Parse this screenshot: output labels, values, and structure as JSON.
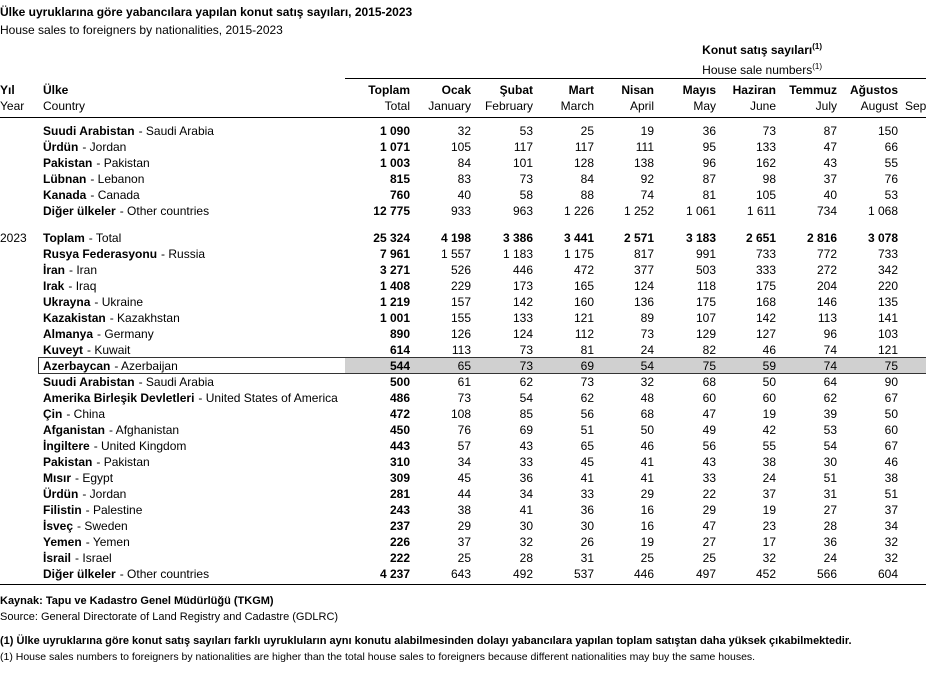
{
  "header": {
    "title": "Ülke uyruklarına göre yabancılara yapılan konut satış sayıları, 2015-2023",
    "subtitle": "House sales to foreigners by nationalities, 2015-2023",
    "group_tr": "Konut satış sayıları",
    "group_tr_sup": "(1)",
    "group_en": "House sale numbers",
    "group_en_sup": "(1)"
  },
  "table": {
    "year_head": {
      "tr": "Yıl",
      "en": "Year"
    },
    "country_head": {
      "tr": "Ülke",
      "en": "Country"
    },
    "columns": [
      {
        "tr": "Toplam",
        "en": "Total"
      },
      {
        "tr": "Ocak",
        "en": "January"
      },
      {
        "tr": "Şubat",
        "en": "February"
      },
      {
        "tr": "Mart",
        "en": "March"
      },
      {
        "tr": "Nisan",
        "en": "April"
      },
      {
        "tr": "Mayıs",
        "en": "May"
      },
      {
        "tr": "Haziran",
        "en": "June"
      },
      {
        "tr": "Temmuz",
        "en": "July"
      },
      {
        "tr": "Ağustos",
        "en": "August"
      },
      {
        "en": "Sep"
      }
    ],
    "sections": [
      {
        "rows": [
          {
            "tr": "Suudi Arabistan",
            "en": "- Saudi Arabia",
            "values": [
              "1 090",
              "32",
              "53",
              "25",
              "19",
              "36",
              "73",
              "87",
              "150"
            ]
          },
          {
            "tr": "Ürdün",
            "en": "- Jordan",
            "values": [
              "1 071",
              "105",
              "117",
              "117",
              "111",
              "95",
              "133",
              "47",
              "66"
            ]
          },
          {
            "tr": "Pakistan",
            "en": "- Pakistan",
            "values": [
              "1 003",
              "84",
              "101",
              "128",
              "138",
              "96",
              "162",
              "43",
              "55"
            ]
          },
          {
            "tr": "Lübnan",
            "en": "- Lebanon",
            "values": [
              "815",
              "83",
              "73",
              "84",
              "92",
              "87",
              "98",
              "37",
              "76"
            ]
          },
          {
            "tr": "Kanada",
            "en": "- Canada",
            "values": [
              "760",
              "40",
              "58",
              "88",
              "74",
              "81",
              "105",
              "40",
              "53"
            ]
          },
          {
            "tr": "Diğer ülkeler",
            "en": "- Other countries",
            "values": [
              "12 775",
              "933",
              "963",
              "1 226",
              "1 252",
              "1 061",
              "1 611",
              "734",
              "1 068"
            ]
          }
        ]
      },
      {
        "year": "2023",
        "rows": [
          {
            "tr": "Toplam",
            "en": "- Total",
            "total": true,
            "values": [
              "25 324",
              "4 198",
              "3 386",
              "3 441",
              "2 571",
              "3 183",
              "2 651",
              "2 816",
              "3 078"
            ]
          },
          {
            "tr": "Rusya Federasyonu",
            "en": "- Russia",
            "values": [
              "7 961",
              "1 557",
              "1 183",
              "1 175",
              "817",
              "991",
              "733",
              "772",
              "733"
            ]
          },
          {
            "tr": "İran",
            "en": "- Iran",
            "values": [
              "3 271",
              "526",
              "446",
              "472",
              "377",
              "503",
              "333",
              "272",
              "342"
            ]
          },
          {
            "tr": "Irak",
            "en": "- Iraq",
            "values": [
              "1 408",
              "229",
              "173",
              "165",
              "124",
              "118",
              "175",
              "204",
              "220"
            ]
          },
          {
            "tr": "Ukrayna",
            "en": "- Ukraine",
            "values": [
              "1 219",
              "157",
              "142",
              "160",
              "136",
              "175",
              "168",
              "146",
              "135"
            ]
          },
          {
            "tr": "Kazakistan",
            "en": "- Kazakhstan",
            "values": [
              "1 001",
              "155",
              "133",
              "121",
              "89",
              "107",
              "142",
              "113",
              "141"
            ]
          },
          {
            "tr": "Almanya",
            "en": "- Germany",
            "values": [
              "890",
              "126",
              "124",
              "112",
              "73",
              "129",
              "127",
              "96",
              "103"
            ]
          },
          {
            "tr": "Kuveyt",
            "en": "- Kuwait",
            "values": [
              "614",
              "113",
              "73",
              "81",
              "24",
              "82",
              "46",
              "74",
              "121"
            ]
          },
          {
            "tr": "Azerbaycan",
            "en": "- Azerbaijan",
            "highlight": true,
            "values": [
              "544",
              "65",
              "73",
              "69",
              "54",
              "75",
              "59",
              "74",
              "75"
            ]
          },
          {
            "tr": "Suudi Arabistan",
            "en": "- Saudi Arabia",
            "values": [
              "500",
              "61",
              "62",
              "73",
              "32",
              "68",
              "50",
              "64",
              "90"
            ]
          },
          {
            "tr": "Amerika Birleşik Devletleri",
            "en": "- United States of America",
            "values": [
              "486",
              "73",
              "54",
              "62",
              "48",
              "60",
              "60",
              "62",
              "67"
            ]
          },
          {
            "tr": "Çin",
            "en": "- China",
            "values": [
              "472",
              "108",
              "85",
              "56",
              "68",
              "47",
              "19",
              "39",
              "50"
            ]
          },
          {
            "tr": "Afganistan",
            "en": "- Afghanistan",
            "values": [
              "450",
              "76",
              "69",
              "51",
              "50",
              "49",
              "42",
              "53",
              "60"
            ]
          },
          {
            "tr": "İngiltere",
            "en": "- United Kingdom",
            "values": [
              "443",
              "57",
              "43",
              "65",
              "46",
              "56",
              "55",
              "54",
              "67"
            ]
          },
          {
            "tr": "Pakistan",
            "en": "- Pakistan",
            "values": [
              "310",
              "34",
              "33",
              "45",
              "41",
              "43",
              "38",
              "30",
              "46"
            ]
          },
          {
            "tr": "Mısır",
            "en": "- Egypt",
            "values": [
              "309",
              "45",
              "36",
              "41",
              "41",
              "33",
              "24",
              "51",
              "38"
            ]
          },
          {
            "tr": "Ürdün",
            "en": "- Jordan",
            "values": [
              "281",
              "44",
              "34",
              "33",
              "29",
              "22",
              "37",
              "31",
              "51"
            ]
          },
          {
            "tr": "Filistin",
            "en": "- Palestine",
            "values": [
              "243",
              "38",
              "41",
              "36",
              "16",
              "29",
              "19",
              "27",
              "37"
            ]
          },
          {
            "tr": "İsveç",
            "en": "- Sweden",
            "values": [
              "237",
              "29",
              "30",
              "30",
              "16",
              "47",
              "23",
              "28",
              "34"
            ]
          },
          {
            "tr": "Yemen",
            "en": "- Yemen",
            "values": [
              "226",
              "37",
              "32",
              "26",
              "19",
              "27",
              "17",
              "36",
              "32"
            ]
          },
          {
            "tr": "İsrail",
            "en": "- Israel",
            "values": [
              "222",
              "25",
              "28",
              "31",
              "25",
              "25",
              "32",
              "24",
              "32"
            ]
          },
          {
            "tr": "Diğer ülkeler",
            "en": "- Other countries",
            "values": [
              "4 237",
              "643",
              "492",
              "537",
              "446",
              "497",
              "452",
              "566",
              "604"
            ]
          }
        ]
      }
    ]
  },
  "footer": {
    "source_tr": "Kaynak: Tapu ve Kadastro Genel Müdürlüğü (TKGM)",
    "source_en": "Source: General Directorate of Land Registry and Cadastre (GDLRC)",
    "note_tr": "(1) Ülke uyruklarına göre konut satış sayıları farklı uyrukluların aynı konutu alabilmesinden dolayı yabancılara yapılan toplam satıştan daha yüksek çıkabilmektedir.",
    "note_en": "(1) House sales numbers to foreigners by nationalities are higher than the total house sales to foreigners because different nationalities may buy the same houses."
  }
}
